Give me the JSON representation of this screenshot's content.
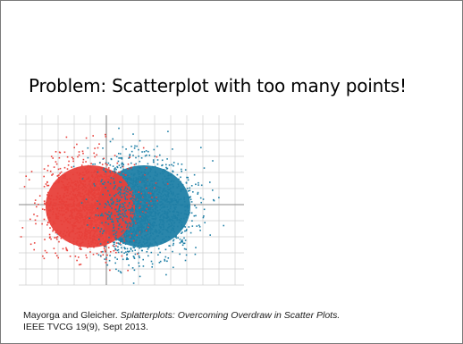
{
  "slide": {
    "title": "Problem: Scatterplot with too many points!"
  },
  "figure": {
    "description_icon": "splatterplot-figure",
    "colors": {
      "series_a": "#e8403a",
      "series_b": "#1f7fa6",
      "grid": "#cfcfcf",
      "axis": "#8a8a8a"
    },
    "chart_data": {
      "type": "scatter",
      "series": [
        {
          "color": "#e8403a"
        },
        {
          "color": "#1f7fa6"
        }
      ],
      "grid": true
    }
  },
  "citation": {
    "authors": "Mayorga and Gleicher. ",
    "paper_title": "Splatterplots: Overcoming Overdraw in Scatter Plots.",
    "venue": "IEEE TVCG 19(9), Sept 2013."
  }
}
